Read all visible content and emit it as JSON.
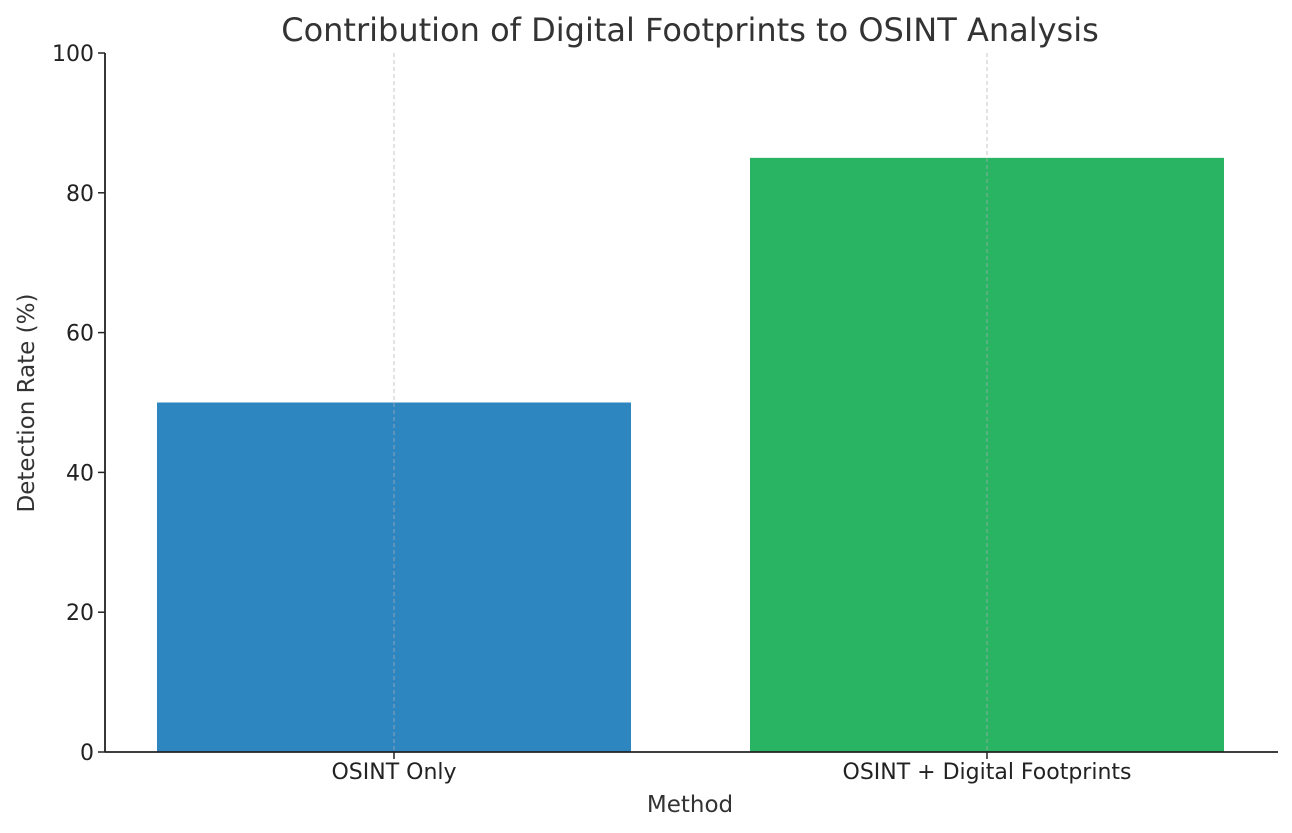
{
  "chart_data": {
    "type": "bar",
    "title": "Contribution of Digital Footprints to OSINT Analysis",
    "xlabel": "Method",
    "ylabel": "Detection Rate (%)",
    "categories": [
      "OSINT Only",
      "OSINT + Digital Footprints"
    ],
    "values": [
      50,
      85
    ],
    "colors": [
      "#2e86c1",
      "#28b463"
    ],
    "ylim": [
      0,
      100
    ],
    "yticks": [
      "0",
      "20",
      "40",
      "60",
      "80",
      "100"
    ],
    "grid": "vertical dashed at category ticks",
    "legend": "none",
    "spines": "left and bottom only"
  }
}
